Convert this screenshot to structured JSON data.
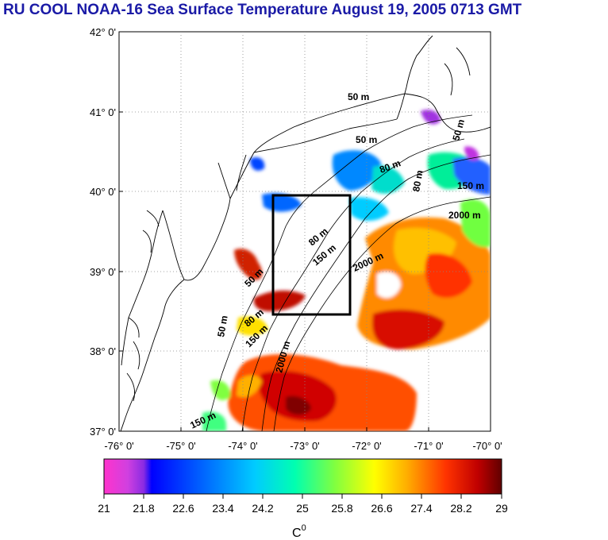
{
  "title": "RU COOL  NOAA-16 Sea Surface Temperature August 19, 2005 0713 GMT",
  "map": {
    "lat_labels": [
      "42° 0'",
      "41° 0'",
      "40° 0'",
      "39° 0'",
      "38° 0'",
      "37° 0'"
    ],
    "lon_labels": [
      "-76° 0'",
      "-75° 0'",
      "-74° 0'",
      "-73° 0'",
      "-72° 0'",
      "-71° 0'",
      "-70° 0'"
    ],
    "lat_range": [
      37,
      42
    ],
    "lon_range": [
      -76,
      -70
    ],
    "grid": true,
    "contour_labels": [
      "50 m",
      "50 m",
      "80 m",
      "50 m",
      "150 m",
      "2000 m",
      "2000 m",
      "80 m",
      "150 m",
      "50 m",
      "80 m",
      "150 m",
      "2000 m",
      "50 m",
      "150 m",
      "80 m"
    ],
    "study_box": {
      "lon": [
        -73.5,
        -72.5
      ],
      "lat": [
        38.5,
        40.0
      ]
    }
  },
  "colorbar": {
    "tick_labels": [
      "21",
      "21.8",
      "22.6",
      "23.4",
      "24.2",
      "25",
      "25.8",
      "26.6",
      "27.4",
      "28.2",
      "29"
    ],
    "min": 21,
    "max": 29,
    "unit_base": "C",
    "unit_sup": "0",
    "colors": [
      "#ff33cc",
      "#8a2be2",
      "#0000ff",
      "#00aaff",
      "#00ffcc",
      "#7fff00",
      "#ffff00",
      "#ffa500",
      "#ff3300",
      "#b00000",
      "#660000"
    ]
  }
}
